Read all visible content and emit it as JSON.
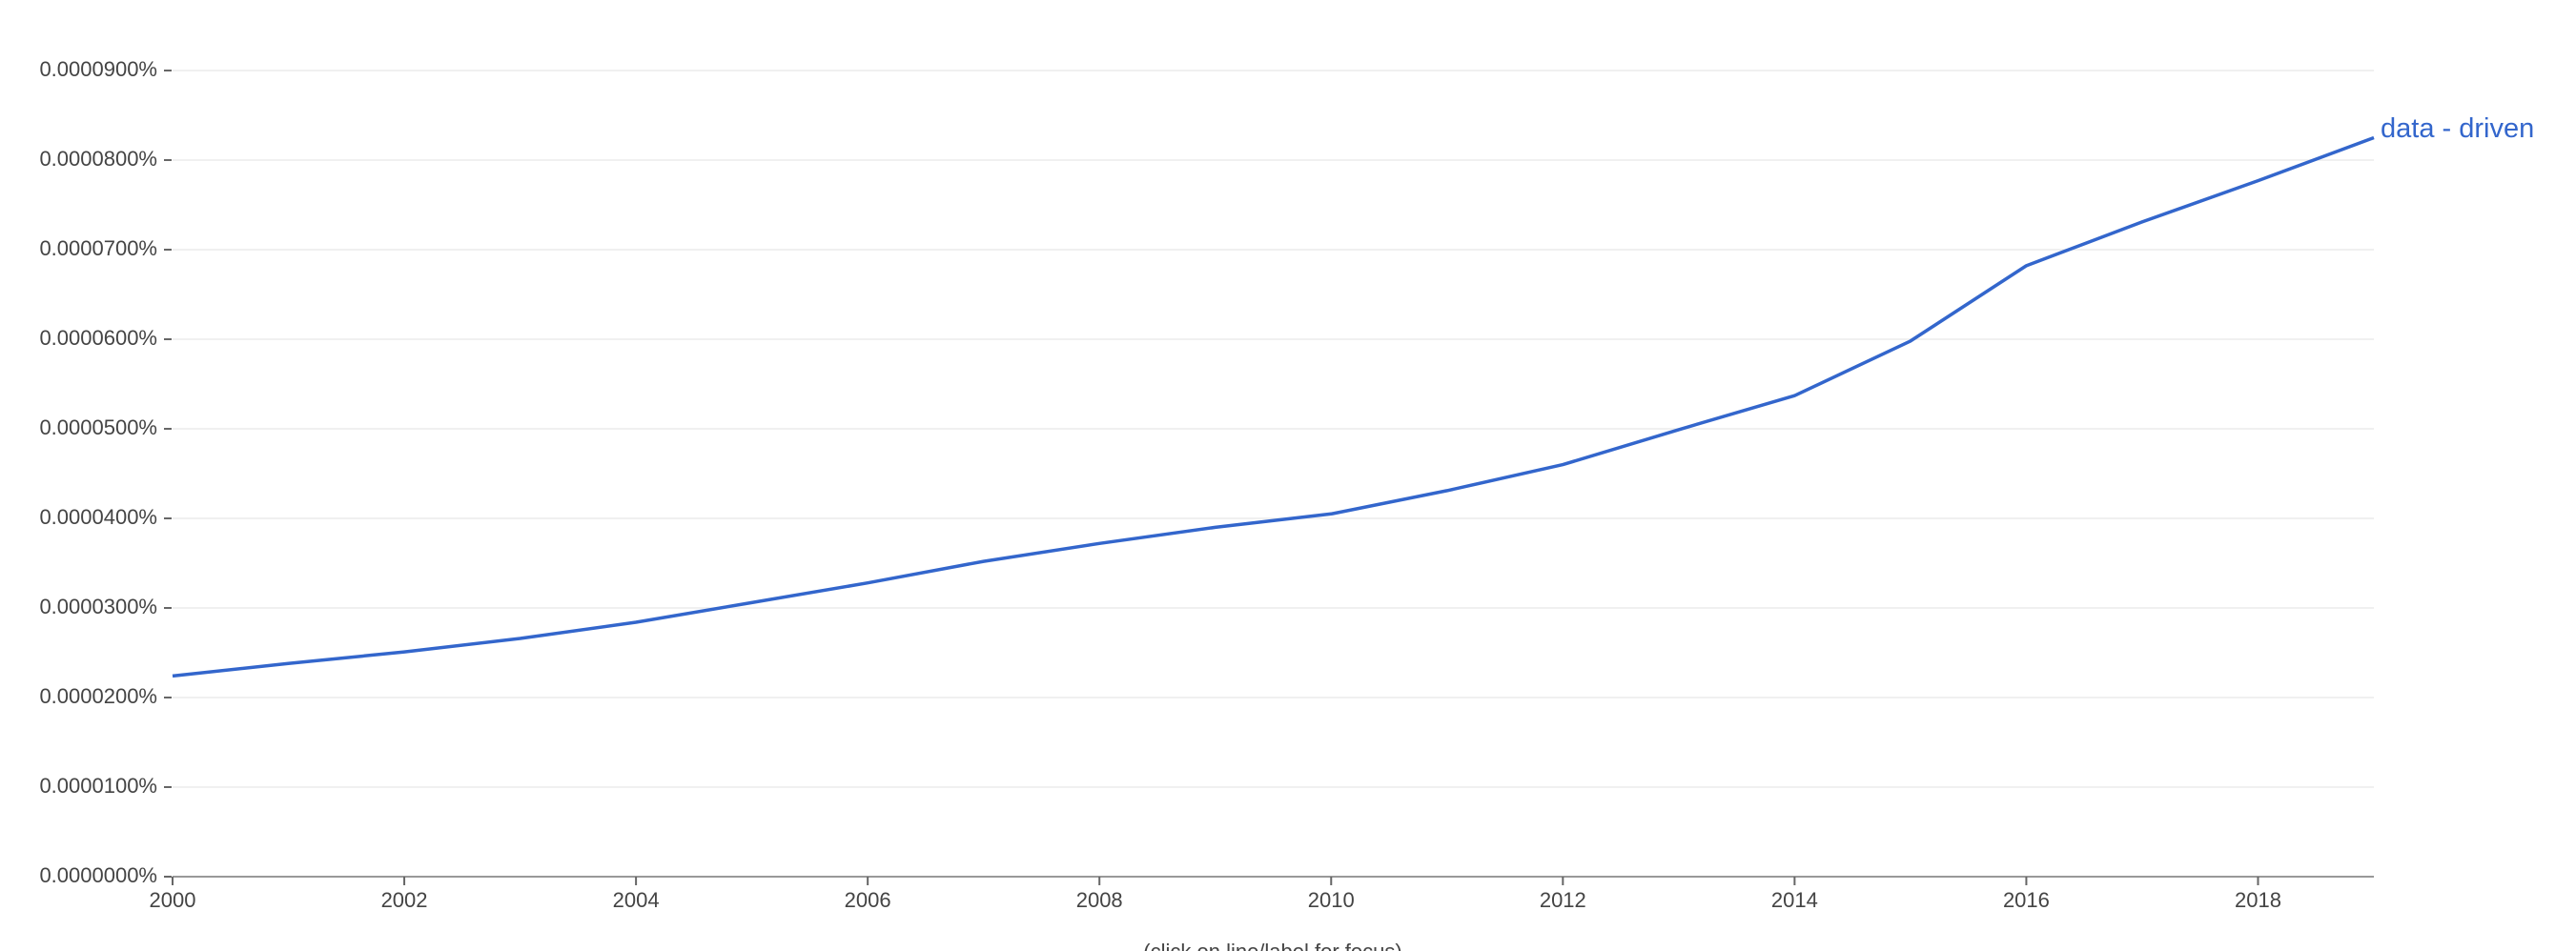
{
  "chart_data": {
    "type": "line",
    "x": [
      2000,
      2001,
      2002,
      2003,
      2004,
      2005,
      2006,
      2007,
      2008,
      2009,
      2010,
      2011,
      2012,
      2013,
      2014,
      2015,
      2016,
      2017,
      2018,
      2019
    ],
    "series": [
      {
        "name": "data - driven",
        "color": "#3366cc",
        "values": [
          2.24e-05,
          2.38e-05,
          2.51e-05,
          2.66e-05,
          2.84e-05,
          3.06e-05,
          3.28e-05,
          3.52e-05,
          3.72e-05,
          3.9e-05,
          4.05e-05,
          4.31e-05,
          4.6e-05,
          4.99e-05,
          5.37e-05,
          5.98e-05,
          6.82e-05,
          7.31e-05,
          7.77e-05,
          8.25e-05
        ]
      }
    ],
    "xlim": [
      2000,
      2019
    ],
    "xticks": [
      2000,
      2002,
      2004,
      2006,
      2008,
      2010,
      2012,
      2014,
      2016,
      2018
    ],
    "ylim": [
      0,
      9e-05
    ],
    "yticks": [
      {
        "value": 0,
        "label": "0.0000000%"
      },
      {
        "value": 1e-05,
        "label": "0.0000100%"
      },
      {
        "value": 2e-05,
        "label": "0.0000200%"
      },
      {
        "value": 3e-05,
        "label": "0.0000300%"
      },
      {
        "value": 4e-05,
        "label": "0.0000400%"
      },
      {
        "value": 5e-05,
        "label": "0.0000500%"
      },
      {
        "value": 6e-05,
        "label": "0.0000600%"
      },
      {
        "value": 7e-05,
        "label": "0.0000700%"
      },
      {
        "value": 8e-05,
        "label": "0.0000800%"
      },
      {
        "value": 9e-05,
        "label": "0.0000900%"
      }
    ],
    "grid": true,
    "note": "(click on line/label for focus)"
  }
}
